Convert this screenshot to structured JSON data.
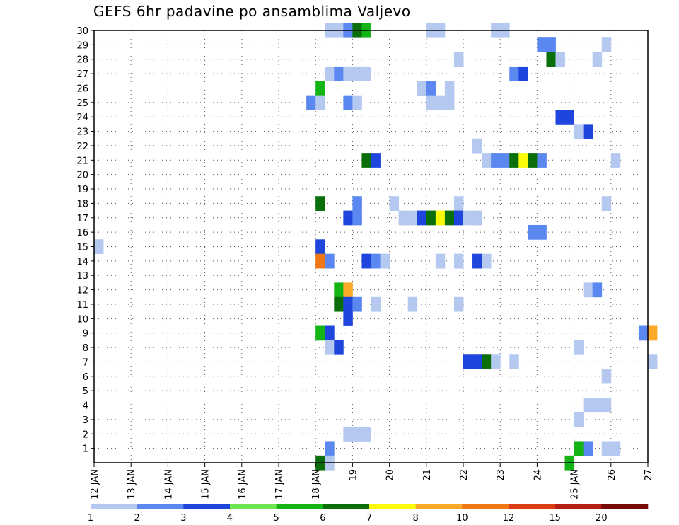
{
  "chart_data": {
    "type": "heatmap",
    "title": "GEFS 6hr padavine po ansamblima Valjevo",
    "xlabel": "",
    "ylabel": "",
    "x_ticks": [
      "12 JAN",
      "13 JAN",
      "14 JAN",
      "15 JAN",
      "16 JAN",
      "17 JAN",
      "18 JAN",
      "19",
      "20",
      "21",
      "22",
      "23",
      "24",
      "25 JAN",
      "26",
      "27"
    ],
    "x_range_days": [
      12,
      27
    ],
    "x_step_hours": 6,
    "y_ticks": [
      "1",
      "2",
      "3",
      "4",
      "5",
      "6",
      "7",
      "8",
      "9",
      "10",
      "11",
      "12",
      "13",
      "14",
      "15",
      "16",
      "17",
      "18",
      "19",
      "20",
      "21",
      "22",
      "23",
      "24",
      "25",
      "26",
      "27",
      "28",
      "29",
      "30"
    ],
    "y_range": [
      0,
      30
    ],
    "grid": true,
    "legend_position": "bottom",
    "legend": {
      "labels": [
        "1",
        "2",
        "3",
        "4",
        "5",
        "6",
        "7",
        "8",
        "10",
        "12",
        "15",
        "20"
      ],
      "colors": [
        "#b4c8f0",
        "#5a87f0",
        "#1e46dc",
        "#6ee650",
        "#14b414",
        "#0a6e0a",
        "#fafa0a",
        "#faaa28",
        "#f07814",
        "#dc3c14",
        "#b41e14",
        "#780a0a"
      ]
    },
    "cells_note": "each cell: member, day (start of 6h step), value in mm",
    "cells": [
      {
        "member": 30,
        "day": 18.25,
        "value": 1
      },
      {
        "member": 30,
        "day": 18.5,
        "value": 1
      },
      {
        "member": 30,
        "day": 18.75,
        "value": 2
      },
      {
        "member": 30,
        "day": 19.0,
        "value": 6
      },
      {
        "member": 30,
        "day": 19.25,
        "value": 5
      },
      {
        "member": 30,
        "day": 21.0,
        "value": 1
      },
      {
        "member": 30,
        "day": 21.25,
        "value": 1
      },
      {
        "member": 30,
        "day": 22.75,
        "value": 1
      },
      {
        "member": 30,
        "day": 23.0,
        "value": 1
      },
      {
        "member": 29,
        "day": 24.0,
        "value": 2
      },
      {
        "member": 29,
        "day": 24.25,
        "value": 2
      },
      {
        "member": 29,
        "day": 25.75,
        "value": 1
      },
      {
        "member": 28,
        "day": 21.75,
        "value": 1
      },
      {
        "member": 28,
        "day": 24.25,
        "value": 6
      },
      {
        "member": 28,
        "day": 24.5,
        "value": 1
      },
      {
        "member": 28,
        "day": 25.5,
        "value": 1
      },
      {
        "member": 27,
        "day": 18.25,
        "value": 1
      },
      {
        "member": 27,
        "day": 18.5,
        "value": 2
      },
      {
        "member": 27,
        "day": 18.75,
        "value": 1
      },
      {
        "member": 27,
        "day": 19.0,
        "value": 1
      },
      {
        "member": 27,
        "day": 19.25,
        "value": 1
      },
      {
        "member": 27,
        "day": 23.25,
        "value": 2
      },
      {
        "member": 27,
        "day": 23.5,
        "value": 3
      },
      {
        "member": 26,
        "day": 18.0,
        "value": 5
      },
      {
        "member": 26,
        "day": 20.75,
        "value": 1
      },
      {
        "member": 26,
        "day": 21.0,
        "value": 2
      },
      {
        "member": 26,
        "day": 21.5,
        "value": 1
      },
      {
        "member": 25,
        "day": 17.75,
        "value": 2
      },
      {
        "member": 25,
        "day": 18.0,
        "value": 1
      },
      {
        "member": 25,
        "day": 18.75,
        "value": 2
      },
      {
        "member": 25,
        "day": 19.0,
        "value": 1
      },
      {
        "member": 25,
        "day": 21.0,
        "value": 1
      },
      {
        "member": 25,
        "day": 21.25,
        "value": 1
      },
      {
        "member": 25,
        "day": 21.5,
        "value": 1
      },
      {
        "member": 24,
        "day": 24.5,
        "value": 3
      },
      {
        "member": 24,
        "day": 24.75,
        "value": 3
      },
      {
        "member": 23,
        "day": 25.0,
        "value": 1
      },
      {
        "member": 23,
        "day": 25.25,
        "value": 3
      },
      {
        "member": 22,
        "day": 22.25,
        "value": 1
      },
      {
        "member": 21,
        "day": 19.25,
        "value": 6
      },
      {
        "member": 21,
        "day": 19.5,
        "value": 3
      },
      {
        "member": 21,
        "day": 22.5,
        "value": 1
      },
      {
        "member": 21,
        "day": 22.75,
        "value": 2
      },
      {
        "member": 21,
        "day": 23.0,
        "value": 2
      },
      {
        "member": 21,
        "day": 23.25,
        "value": 6
      },
      {
        "member": 21,
        "day": 23.5,
        "value": 7
      },
      {
        "member": 21,
        "day": 23.75,
        "value": 6
      },
      {
        "member": 21,
        "day": 24.0,
        "value": 2
      },
      {
        "member": 21,
        "day": 26.0,
        "value": 1
      },
      {
        "member": 18,
        "day": 18.0,
        "value": 6
      },
      {
        "member": 18,
        "day": 19.0,
        "value": 2
      },
      {
        "member": 18,
        "day": 20.0,
        "value": 1
      },
      {
        "member": 18,
        "day": 21.75,
        "value": 1
      },
      {
        "member": 18,
        "day": 25.75,
        "value": 1
      },
      {
        "member": 17,
        "day": 18.75,
        "value": 3
      },
      {
        "member": 17,
        "day": 19.0,
        "value": 2
      },
      {
        "member": 17,
        "day": 20.25,
        "value": 1
      },
      {
        "member": 17,
        "day": 20.5,
        "value": 1
      },
      {
        "member": 17,
        "day": 20.75,
        "value": 3
      },
      {
        "member": 17,
        "day": 21.0,
        "value": 6
      },
      {
        "member": 17,
        "day": 21.25,
        "value": 7
      },
      {
        "member": 17,
        "day": 21.5,
        "value": 6
      },
      {
        "member": 17,
        "day": 21.75,
        "value": 3
      },
      {
        "member": 17,
        "day": 22.0,
        "value": 1
      },
      {
        "member": 17,
        "day": 22.25,
        "value": 1
      },
      {
        "member": 16,
        "day": 23.75,
        "value": 2
      },
      {
        "member": 16,
        "day": 24.0,
        "value": 2
      },
      {
        "member": 15,
        "day": 18.0,
        "value": 3
      },
      {
        "member": 15,
        "day": 12.0,
        "value": 1
      },
      {
        "member": 14,
        "day": 18.0,
        "value": 11
      },
      {
        "member": 14,
        "day": 18.25,
        "value": 2
      },
      {
        "member": 14,
        "day": 19.25,
        "value": 3
      },
      {
        "member": 14,
        "day": 19.5,
        "value": 2
      },
      {
        "member": 14,
        "day": 19.75,
        "value": 1
      },
      {
        "member": 14,
        "day": 21.25,
        "value": 1
      },
      {
        "member": 14,
        "day": 21.75,
        "value": 1
      },
      {
        "member": 14,
        "day": 22.25,
        "value": 3
      },
      {
        "member": 14,
        "day": 22.5,
        "value": 1
      },
      {
        "member": 12,
        "day": 18.5,
        "value": 5
      },
      {
        "member": 12,
        "day": 18.75,
        "value": 9
      },
      {
        "member": 12,
        "day": 25.25,
        "value": 1
      },
      {
        "member": 12,
        "day": 25.5,
        "value": 2
      },
      {
        "member": 11,
        "day": 18.5,
        "value": 6
      },
      {
        "member": 11,
        "day": 18.75,
        "value": 3
      },
      {
        "member": 11,
        "day": 19.0,
        "value": 2
      },
      {
        "member": 11,
        "day": 19.5,
        "value": 1
      },
      {
        "member": 11,
        "day": 20.5,
        "value": 1
      },
      {
        "member": 11,
        "day": 21.75,
        "value": 1
      },
      {
        "member": 10,
        "day": 18.75,
        "value": 3
      },
      {
        "member": 9,
        "day": 18.0,
        "value": 5
      },
      {
        "member": 9,
        "day": 18.25,
        "value": 3
      },
      {
        "member": 9,
        "day": 26.75,
        "value": 2
      },
      {
        "member": 9,
        "day": 27.0,
        "value": 9
      },
      {
        "member": 8,
        "day": 18.25,
        "value": 1
      },
      {
        "member": 8,
        "day": 18.5,
        "value": 3
      },
      {
        "member": 8,
        "day": 25.0,
        "value": 1
      },
      {
        "member": 7,
        "day": 22.0,
        "value": 3
      },
      {
        "member": 7,
        "day": 22.25,
        "value": 3
      },
      {
        "member": 7,
        "day": 22.5,
        "value": 6
      },
      {
        "member": 7,
        "day": 22.75,
        "value": 1
      },
      {
        "member": 7,
        "day": 23.25,
        "value": 1
      },
      {
        "member": 7,
        "day": 27.0,
        "value": 1
      },
      {
        "member": 6,
        "day": 25.75,
        "value": 1
      },
      {
        "member": 4,
        "day": 25.25,
        "value": 1
      },
      {
        "member": 4,
        "day": 25.5,
        "value": 1
      },
      {
        "member": 4,
        "day": 25.75,
        "value": 1
      },
      {
        "member": 3,
        "day": 25.0,
        "value": 1
      },
      {
        "member": 2,
        "day": 18.75,
        "value": 1
      },
      {
        "member": 2,
        "day": 19.0,
        "value": 1
      },
      {
        "member": 2,
        "day": 19.25,
        "value": 1
      },
      {
        "member": 1,
        "day": 18.25,
        "value": 2
      },
      {
        "member": 1,
        "day": 25.0,
        "value": 5
      },
      {
        "member": 1,
        "day": 25.25,
        "value": 2
      },
      {
        "member": 1,
        "day": 25.75,
        "value": 1
      },
      {
        "member": 1,
        "day": 26.0,
        "value": 1
      },
      {
        "member": 0,
        "day": 18.0,
        "value": 6
      },
      {
        "member": 0,
        "day": 18.25,
        "value": 1
      },
      {
        "member": 0,
        "day": 24.75,
        "value": 5
      }
    ]
  }
}
